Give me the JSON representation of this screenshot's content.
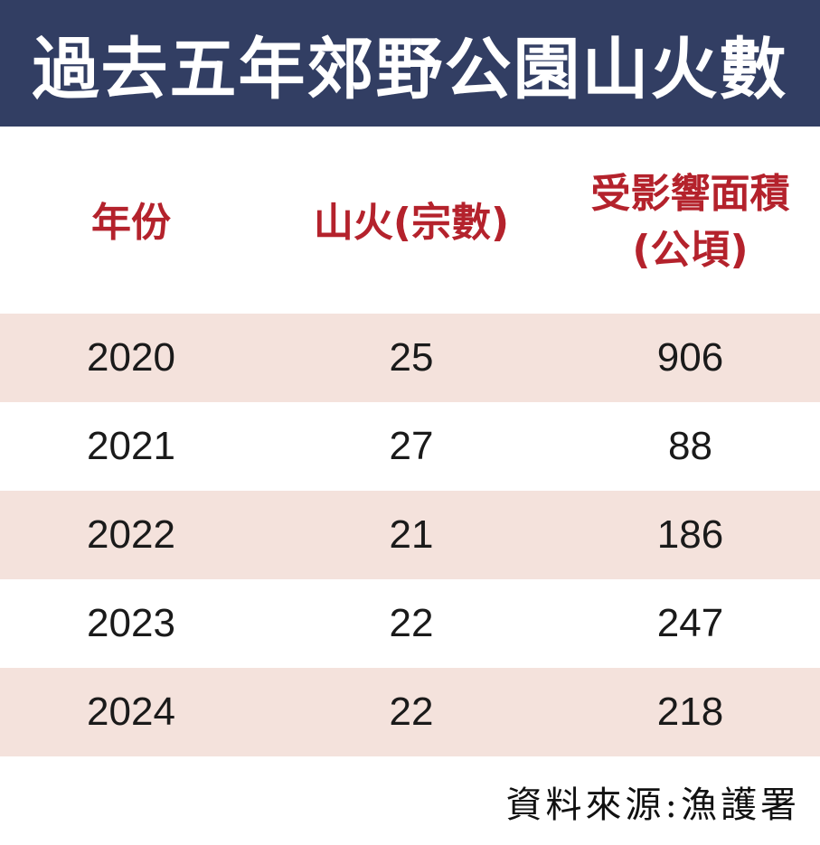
{
  "title": "過去五年郊野公園山火數",
  "colors": {
    "title_background": "#323e63",
    "title_text": "#ffffff",
    "header_text": "#b4222c",
    "shaded_row": "#f4e2dc"
  },
  "headers": {
    "year": "年份",
    "fires": "山火(宗數)",
    "area_line1": "受影響面積",
    "area_line2": "(公頃)"
  },
  "chart_data": {
    "type": "table",
    "title": "過去五年郊野公園山火數",
    "columns": [
      "年份",
      "山火(宗數)",
      "受影響面積(公頃)"
    ],
    "rows": [
      [
        "2020",
        "25",
        "906"
      ],
      [
        "2021",
        "27",
        "88"
      ],
      [
        "2022",
        "21",
        "186"
      ],
      [
        "2023",
        "22",
        "247"
      ],
      [
        "2024",
        "22",
        "218"
      ]
    ]
  },
  "source": "資料來源:漁護署"
}
